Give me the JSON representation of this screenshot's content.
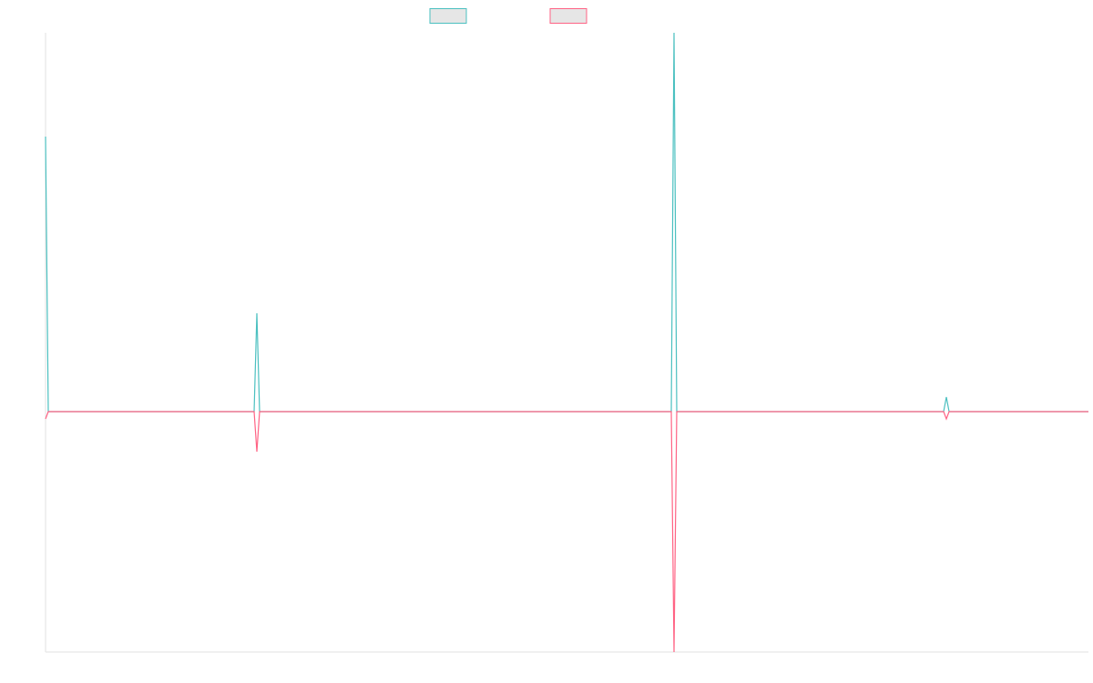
{
  "chart_data": {
    "type": "line",
    "x": [
      0,
      3,
      229,
      232,
      235,
      687,
      690,
      693,
      986,
      989,
      992,
      1145
    ],
    "series": [
      {
        "color": "#4bc0c0",
        "values": [
          75.5,
          0,
          0,
          27,
          0,
          0,
          104,
          0,
          0,
          4,
          0,
          0
        ]
      },
      {
        "color": "#ff6384",
        "values": [
          -2,
          0,
          0,
          -11,
          0,
          0,
          -66,
          0,
          0,
          -2,
          0,
          0
        ]
      }
    ],
    "xlim": [
      0,
      1145
    ],
    "ylim": [
      -66,
      104
    ]
  }
}
